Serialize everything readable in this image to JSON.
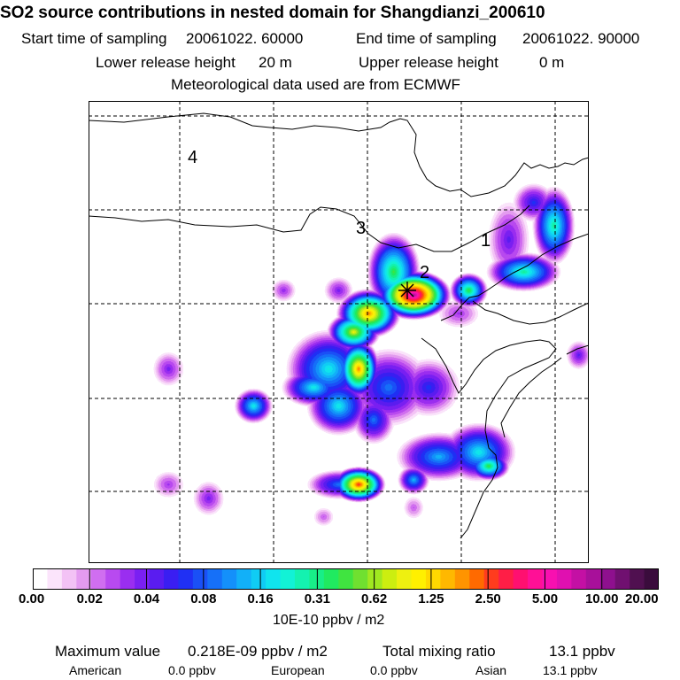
{
  "chart_data": {
    "type": "heatmap",
    "title": "SO2 source contributions in nested domain for Shangdianzi_200610",
    "header": {
      "start_label": "Start time of sampling",
      "start_value": "20061022. 60000",
      "end_label": "End time of sampling",
      "end_value": "20061022. 90000",
      "lower_label": "Lower release height",
      "lower_value": "20 m",
      "upper_label": "Upper release height",
      "upper_value": "0 m",
      "met": "Meteorological data used are from ECMWF"
    },
    "region_labels": [
      "4",
      "3",
      "1",
      "2"
    ],
    "receptor_marker": "Shangdianzi",
    "colorbar": {
      "ticks": [
        "0.00",
        "0.02",
        "0.04",
        "0.08",
        "0.16",
        "0.31",
        "0.62",
        "1.25",
        "2.50",
        "5.00",
        "10.00",
        "20.00"
      ],
      "colors": [
        "#ffffff",
        "#fbe4fb",
        "#f3c2f5",
        "#e49bf0",
        "#d06ef0",
        "#b84af0",
        "#9a2ef0",
        "#7a20f2",
        "#5a1cf0",
        "#3a1ef2",
        "#2030f4",
        "#1a50f6",
        "#1670f8",
        "#1490fa",
        "#12b0f8",
        "#10ccf4",
        "#10e4ee",
        "#12f2d6",
        "#14f2b0",
        "#18ee88",
        "#20ea60",
        "#40e440",
        "#70e030",
        "#a0e820",
        "#ccee10",
        "#eef010",
        "#fff000",
        "#ffd800",
        "#ffb800",
        "#ff9400",
        "#ff6a00",
        "#ff3c1e",
        "#ff1e46",
        "#ff1070",
        "#ff1096",
        "#f810b0",
        "#e010b0",
        "#c410a4",
        "#a8109a",
        "#8e108e",
        "#701070",
        "#501050",
        "#3a0c3c"
      ],
      "unit": "10E-10 ppbv / m2"
    },
    "sources": [
      {
        "x": 0.65,
        "y": 0.42,
        "v": 0.9,
        "sx": 0.035,
        "sy": 0.025
      },
      {
        "x": 0.56,
        "y": 0.46,
        "v": 0.7,
        "sx": 0.03,
        "sy": 0.025
      },
      {
        "x": 0.61,
        "y": 0.37,
        "v": 0.5,
        "sx": 0.025,
        "sy": 0.04
      },
      {
        "x": 0.53,
        "y": 0.5,
        "v": 0.6,
        "sx": 0.025,
        "sy": 0.02
      },
      {
        "x": 0.54,
        "y": 0.58,
        "v": 0.7,
        "sx": 0.02,
        "sy": 0.03
      },
      {
        "x": 0.48,
        "y": 0.58,
        "v": 0.4,
        "sx": 0.04,
        "sy": 0.04
      },
      {
        "x": 0.45,
        "y": 0.62,
        "v": 0.4,
        "sx": 0.03,
        "sy": 0.02
      },
      {
        "x": 0.5,
        "y": 0.66,
        "v": 0.4,
        "sx": 0.03,
        "sy": 0.03
      },
      {
        "x": 0.6,
        "y": 0.62,
        "v": 0.3,
        "sx": 0.04,
        "sy": 0.04
      },
      {
        "x": 0.57,
        "y": 0.69,
        "v": 0.3,
        "sx": 0.02,
        "sy": 0.025
      },
      {
        "x": 0.68,
        "y": 0.62,
        "v": 0.25,
        "sx": 0.03,
        "sy": 0.03
      },
      {
        "x": 0.7,
        "y": 0.77,
        "v": 0.35,
        "sx": 0.04,
        "sy": 0.025
      },
      {
        "x": 0.78,
        "y": 0.76,
        "v": 0.4,
        "sx": 0.035,
        "sy": 0.03
      },
      {
        "x": 0.8,
        "y": 0.79,
        "v": 0.5,
        "sx": 0.02,
        "sy": 0.015
      },
      {
        "x": 0.54,
        "y": 0.83,
        "v": 0.75,
        "sx": 0.025,
        "sy": 0.018
      },
      {
        "x": 0.5,
        "y": 0.83,
        "v": 0.3,
        "sx": 0.03,
        "sy": 0.015
      },
      {
        "x": 0.65,
        "y": 0.82,
        "v": 0.35,
        "sx": 0.015,
        "sy": 0.015
      },
      {
        "x": 0.33,
        "y": 0.66,
        "v": 0.4,
        "sx": 0.018,
        "sy": 0.018
      },
      {
        "x": 0.16,
        "y": 0.58,
        "v": 0.18,
        "sx": 0.015,
        "sy": 0.018
      },
      {
        "x": 0.16,
        "y": 0.83,
        "v": 0.15,
        "sx": 0.015,
        "sy": 0.014
      },
      {
        "x": 0.24,
        "y": 0.86,
        "v": 0.18,
        "sx": 0.015,
        "sy": 0.018
      },
      {
        "x": 0.39,
        "y": 0.41,
        "v": 0.16,
        "sx": 0.012,
        "sy": 0.012
      },
      {
        "x": 0.5,
        "y": 0.41,
        "v": 0.18,
        "sx": 0.014,
        "sy": 0.014
      },
      {
        "x": 0.76,
        "y": 0.41,
        "v": 0.5,
        "sx": 0.018,
        "sy": 0.018
      },
      {
        "x": 0.87,
        "y": 0.37,
        "v": 0.45,
        "sx": 0.035,
        "sy": 0.02
      },
      {
        "x": 0.93,
        "y": 0.27,
        "v": 0.45,
        "sx": 0.02,
        "sy": 0.04
      },
      {
        "x": 0.89,
        "y": 0.22,
        "v": 0.25,
        "sx": 0.02,
        "sy": 0.02
      },
      {
        "x": 0.84,
        "y": 0.3,
        "v": 0.2,
        "sx": 0.02,
        "sy": 0.04
      },
      {
        "x": 0.98,
        "y": 0.55,
        "v": 0.2,
        "sx": 0.012,
        "sy": 0.015
      },
      {
        "x": 0.74,
        "y": 0.46,
        "v": 0.15,
        "sx": 0.02,
        "sy": 0.015
      },
      {
        "x": 0.47,
        "y": 0.9,
        "v": 0.12,
        "sx": 0.01,
        "sy": 0.01
      },
      {
        "x": 0.65,
        "y": 0.88,
        "v": 0.12,
        "sx": 0.01,
        "sy": 0.012
      }
    ],
    "stats": {
      "max_label": "Maximum value",
      "max_value": "0.218E-09 ppbv / m2",
      "total_label": "Total mixing ratio",
      "total_value": "13.1 ppbv",
      "american_label": "American",
      "american_value": "0.0 ppbv",
      "european_label": "European",
      "european_value": "0.0 ppbv",
      "asian_label": "Asian",
      "asian_value": "13.1 ppbv"
    }
  }
}
